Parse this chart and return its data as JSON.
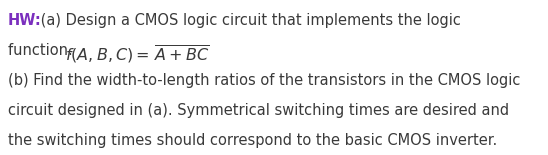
{
  "background_color": "#ffffff",
  "hw_color": "#7B2FBE",
  "text_color": "#3a3a3a",
  "font_size": 10.5,
  "fig_width": 5.48,
  "fig_height": 1.55,
  "dpi": 100,
  "lines": {
    "line1_hw": "HW:",
    "line1_rest": " (a) Design a CMOS logic circuit that implements the logic",
    "line2_pre": "function. ",
    "line3": "(b) Find the width-to-length ratios of the transistors in the CMOS logic",
    "line4": "circuit designed in (a). Symmetrical switching times are desired and",
    "line5": "the switching times should correspond to the basic CMOS inverter."
  }
}
